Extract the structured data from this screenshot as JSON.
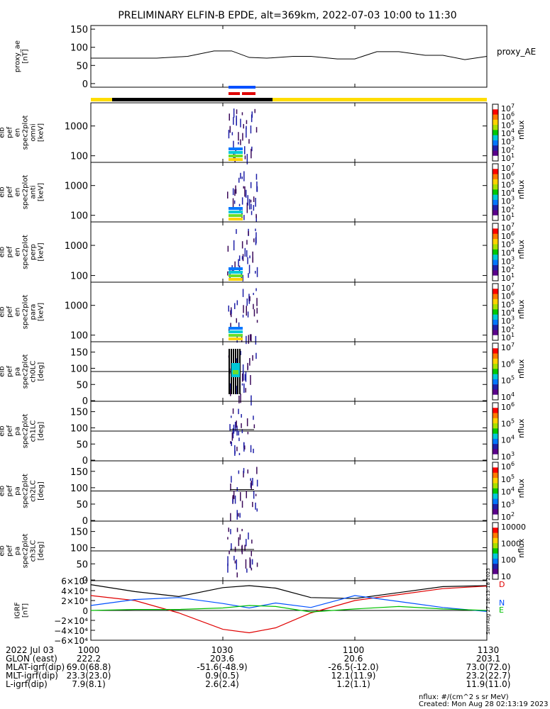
{
  "title": "PRELIMINARY ELFIN-B EPDE, alt=369km, 2022-07-03 10:00 to 11:30",
  "time_ticks": [
    "1000",
    "1030",
    "1100",
    "1130"
  ],
  "colors": {
    "blue": "#0050ff",
    "red": "#e00000",
    "green": "#00c000",
    "black": "#000000",
    "yellow": "#ffdd00"
  },
  "chart_data": [
    {
      "type": "line",
      "ylabel": [
        "proxy_ae",
        "[nT]"
      ],
      "yticks": [
        0,
        50,
        100,
        150
      ],
      "ylim": [
        -10,
        160
      ],
      "legend": "proxy_AE",
      "series": [
        {
          "name": "proxy_AE",
          "x": [
            0,
            8,
            15,
            22,
            28,
            32,
            36,
            40,
            46,
            50,
            56,
            60,
            65,
            70,
            76,
            80,
            85,
            90
          ],
          "y": [
            70,
            70,
            70,
            75,
            90,
            90,
            72,
            70,
            75,
            75,
            68,
            68,
            88,
            88,
            78,
            78,
            66,
            75
          ]
        }
      ]
    },
    {
      "type": "heatmap",
      "ylabel": [
        "elb",
        "pef",
        "en",
        "spec2plot",
        "omni",
        "[keV]"
      ],
      "yticks": [
        "100",
        "1000"
      ],
      "log_y": true,
      "zlabel": "nflux",
      "zticks": [
        "10",
        "10",
        "10",
        "10",
        "10",
        "10",
        "10"
      ],
      "zexp": [
        "1",
        "2",
        "3",
        "4",
        "5",
        "6",
        "7"
      ]
    },
    {
      "type": "heatmap",
      "ylabel": [
        "elb",
        "pef",
        "en",
        "spec2plot",
        "anti",
        "[keV]"
      ],
      "yticks": [
        "100",
        "1000"
      ],
      "log_y": true,
      "zlabel": "nflux",
      "zticks": [
        "10",
        "10",
        "10",
        "10",
        "10",
        "10",
        "10"
      ],
      "zexp": [
        "1",
        "2",
        "3",
        "4",
        "5",
        "6",
        "7"
      ]
    },
    {
      "type": "heatmap",
      "ylabel": [
        "elb",
        "pef",
        "en",
        "spec2plot",
        "perp",
        "[keV]"
      ],
      "yticks": [
        "100",
        "1000"
      ],
      "log_y": true,
      "zlabel": "nflux",
      "zticks": [
        "10",
        "10",
        "10",
        "10",
        "10",
        "10",
        "10"
      ],
      "zexp": [
        "1",
        "2",
        "3",
        "4",
        "5",
        "6",
        "7"
      ]
    },
    {
      "type": "heatmap",
      "ylabel": [
        "elb",
        "pef",
        "en",
        "spec2plot",
        "para",
        "[keV]"
      ],
      "yticks": [
        "100",
        "1000"
      ],
      "log_y": true,
      "zlabel": "nflux",
      "zticks": [
        "10",
        "10",
        "10",
        "10",
        "10",
        "10",
        "10"
      ],
      "zexp": [
        "1",
        "2",
        "3",
        "4",
        "5",
        "6",
        "7"
      ]
    },
    {
      "type": "heatmap",
      "ylabel": [
        "elb",
        "pef",
        "pa",
        "spec2plot",
        "ch0LC",
        "[deg]"
      ],
      "yticks": [
        "0",
        "50",
        "100",
        "150"
      ],
      "zlabel": "nflux",
      "zticks": [
        "10",
        "10",
        "10",
        "10"
      ],
      "zexp": [
        "4",
        "5",
        "6",
        "7"
      ]
    },
    {
      "type": "heatmap",
      "ylabel": [
        "elb",
        "pef",
        "pa",
        "spec2plot",
        "ch1LC",
        "[deg]"
      ],
      "yticks": [
        "0",
        "50",
        "100",
        "150"
      ],
      "zlabel": "nflux",
      "zticks": [
        "10",
        "10",
        "10",
        "10"
      ],
      "zexp": [
        "3",
        "4",
        "5",
        "6"
      ]
    },
    {
      "type": "heatmap",
      "ylabel": [
        "elb",
        "pef",
        "pa",
        "spec2plot",
        "ch2LC",
        "[deg]"
      ],
      "yticks": [
        "0",
        "50",
        "100",
        "150"
      ],
      "zlabel": "nflux",
      "zticks": [
        "10",
        "10",
        "10",
        "10",
        "10"
      ],
      "zexp": [
        "2",
        "3",
        "4",
        "5",
        "6"
      ]
    },
    {
      "type": "heatmap",
      "ylabel": [
        "elb",
        "pef",
        "pa",
        "spec2plot",
        "ch3LC",
        "[deg]"
      ],
      "yticks": [
        "0",
        "50",
        "100",
        "150"
      ],
      "zlabel": "nflux",
      "zticks": [
        "10",
        "100",
        "1000",
        "10000"
      ]
    },
    {
      "type": "line",
      "ylabel": [
        "IGRF",
        "[nT]"
      ],
      "yticks": [
        "6×10⁴",
        "4×10⁴",
        "2×10⁴",
        "0",
        "−2×10⁴",
        "−4×10⁴",
        "−6×10⁴"
      ],
      "ylim": [
        -60000,
        60000
      ],
      "legend": [
        "D",
        "N",
        "E"
      ],
      "series": [
        {
          "name": "D",
          "x": [
            0,
            10,
            20,
            30,
            36,
            42,
            50,
            60,
            70,
            80,
            90
          ],
          "y": [
            52000,
            38000,
            28000,
            46000,
            50000,
            45000,
            26000,
            24000,
            36000,
            48000,
            50000
          ]
        },
        {
          "name": "N",
          "x": [
            0,
            10,
            20,
            30,
            36,
            42,
            50,
            60,
            70,
            80,
            90
          ],
          "y": [
            30000,
            20000,
            -5000,
            -38000,
            -45000,
            -35000,
            -5000,
            20000,
            32000,
            44000,
            49000
          ]
        },
        {
          "name": "E",
          "x": [
            0,
            10,
            20,
            30,
            36,
            42,
            50,
            60,
            70,
            80,
            90
          ],
          "y": [
            10000,
            22000,
            26000,
            14000,
            5000,
            15000,
            6000,
            30000,
            18000,
            6000,
            -2000
          ]
        },
        {
          "name": "",
          "x": [
            0,
            10,
            20,
            30,
            36,
            42,
            50,
            60,
            70,
            80,
            90
          ],
          "y": [
            0,
            2000,
            2000,
            5000,
            10000,
            8000,
            -3000,
            3000,
            8000,
            3000,
            0
          ]
        }
      ]
    }
  ],
  "timestamp_vertical": "Sun Aug 27 18:13:18 2023",
  "footer": {
    "rows": [
      {
        "label": "2022 Jul 03",
        "values": [
          "1000",
          "1030",
          "1100",
          "1130"
        ]
      },
      {
        "label": "GLON (east)",
        "values": [
          "222.2",
          "203.6",
          "20.6",
          "203.1"
        ]
      },
      {
        "label": "MLAT-igrf(dip)",
        "values": [
          "69.0(68.8)",
          "-51.6(-48.9)",
          "-26.5(-12.0)",
          "73.0(72.0)"
        ]
      },
      {
        "label": "MLT-igrf(dip)",
        "values": [
          "23.3(23.0)",
          "0.9(0.5)",
          "12.1(11.9)",
          "23.2(22.7)"
        ]
      },
      {
        "label": "L-igrf(dip)",
        "values": [
          "7.9(8.1)",
          "2.6(2.4)",
          "1.2(1.1)",
          "11.9(11.0)"
        ]
      }
    ],
    "units_note": "nflux: #/(cm^2 s sr MeV)",
    "created": "Created: Mon Aug 28 02:13:19 2023"
  }
}
